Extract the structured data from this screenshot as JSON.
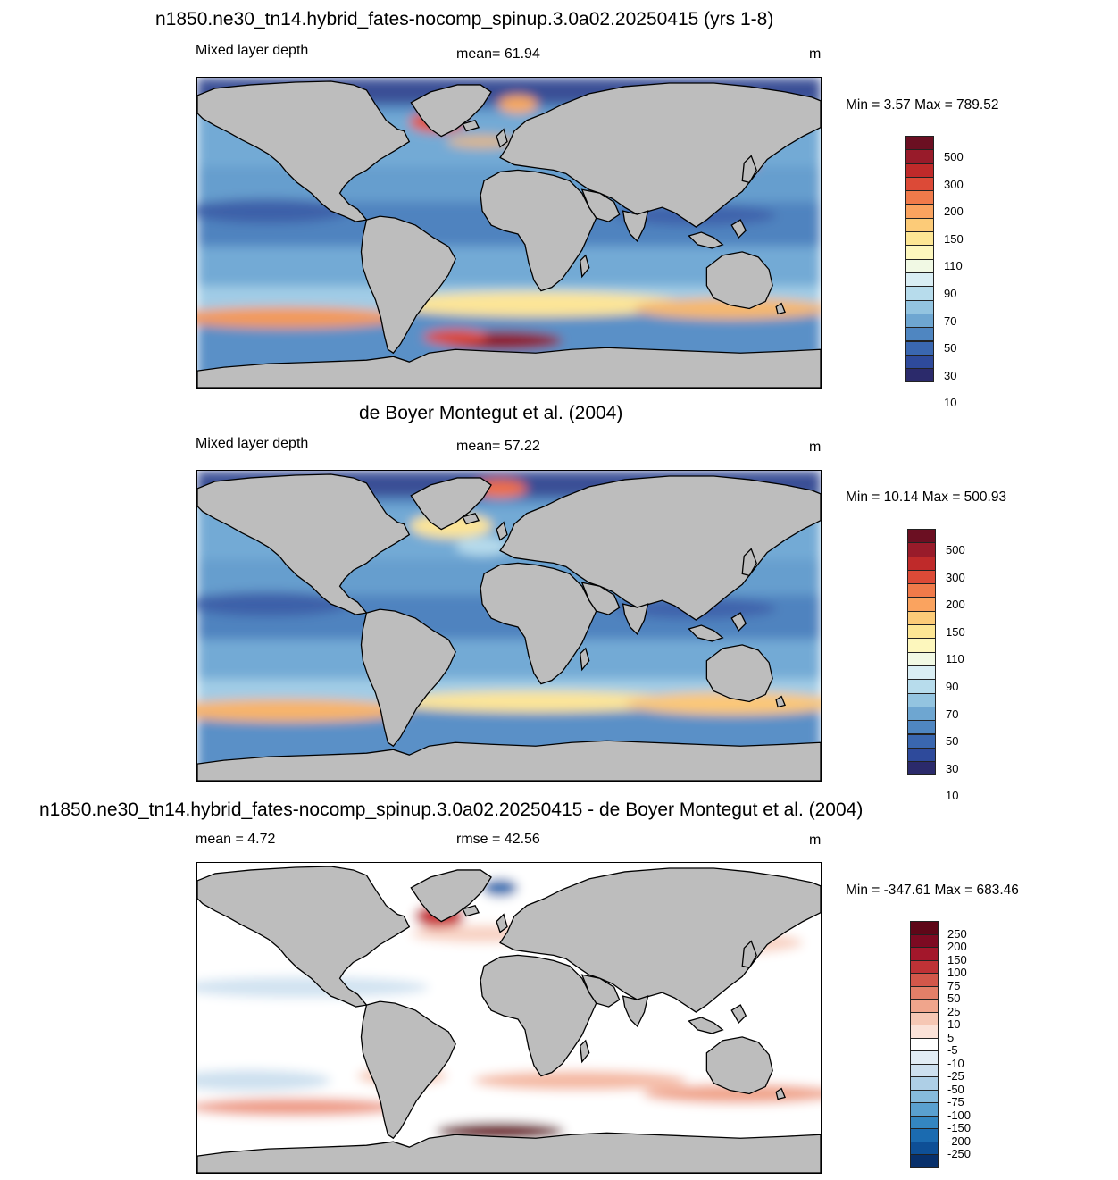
{
  "panels": [
    {
      "title": "n1850.ne30_tn14.hybrid_fates-nocomp_spinup.3.0a02.20250415 (yrs 1-8)",
      "left_label": "Mixed layer depth",
      "center_label": "mean=  61.94",
      "units": "m",
      "minmax": "Min =   3.57 Max = 789.52",
      "scale": "model"
    },
    {
      "title": "de Boyer Montegut et al. (2004)",
      "left_label": "Mixed layer depth",
      "center_label": "mean=  57.22",
      "units": "m",
      "minmax": "Min =  10.14 Max = 500.93",
      "scale": "obs"
    },
    {
      "title": "n1850.ne30_tn14.hybrid_fates-nocomp_spinup.3.0a02.20250415 - de Boyer Montegut et al. (2004)",
      "left_label": "mean =   4.72",
      "center_label": "rmse =  42.56",
      "units": "m",
      "minmax": "Min = -347.61 Max = 683.46",
      "scale": "diff"
    }
  ],
  "colorbars": {
    "sequential": {
      "colors": [
        "#2b2a6b",
        "#2e4a9b",
        "#3a67b0",
        "#4f86c1",
        "#6ea6d1",
        "#93c4e0",
        "#b7dcec",
        "#d9eef4",
        "#f1f9e4",
        "#fdf7bd",
        "#fde694",
        "#fccb78",
        "#faa35f",
        "#f07a4a",
        "#dc4a37",
        "#bf2a2a",
        "#981b2a",
        "#6b0f22"
      ],
      "labels": [
        "10",
        "30",
        "50",
        "70",
        "90",
        "110",
        "150",
        "200",
        "300",
        "500"
      ]
    },
    "diverging": {
      "colors": [
        "#08306b",
        "#0e4f96",
        "#1b6bb0",
        "#3486c1",
        "#5aa0cf",
        "#86bbdc",
        "#aecfe6",
        "#cde0ef",
        "#e2edf5",
        "#ffffff",
        "#fbe2d8",
        "#f6c7b4",
        "#f0a58c",
        "#e37f68",
        "#d3574a",
        "#bf3236",
        "#a3172b",
        "#7d0a22",
        "#5e0718"
      ],
      "labels": [
        "250",
        "200",
        "150",
        "100",
        "75",
        "50",
        "25",
        "10",
        "5",
        "-5",
        "-10",
        "-25",
        "-50",
        "-75",
        "-100",
        "-150",
        "-200",
        "-250"
      ]
    }
  }
}
